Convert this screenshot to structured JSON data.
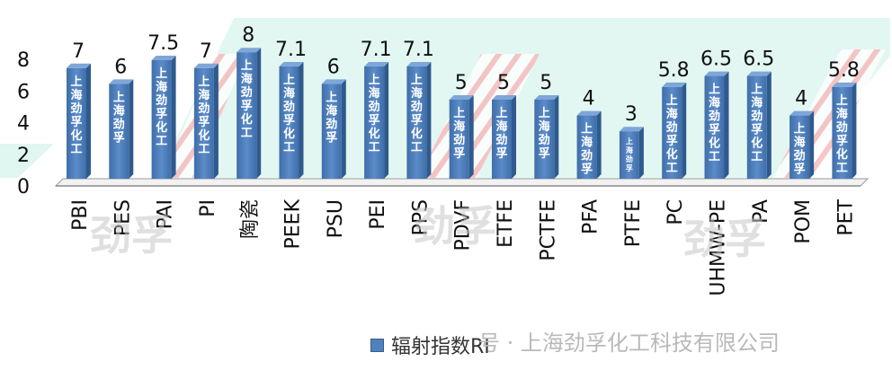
{
  "chart_data": {
    "type": "bar",
    "categories": [
      "PBI",
      "PES",
      "PAI",
      "PI",
      "陶瓷",
      "PEEK",
      "PSU",
      "PEI",
      "PPS",
      "PDVF",
      "ETFE",
      "PCTFE",
      "PFA",
      "PTFE",
      "PC",
      "UHMW-PE",
      "PA",
      "POM",
      "PET"
    ],
    "series": [
      {
        "name": "辐射指数RI",
        "values": [
          7,
          6,
          7.5,
          7,
          8,
          7.1,
          6,
          7.1,
          7.1,
          5,
          5,
          5,
          4,
          3,
          5.8,
          6.5,
          6.5,
          4,
          5.8
        ]
      }
    ],
    "data_labels": [
      "7",
      "6",
      "7.5",
      "7",
      "8",
      "7.1",
      "6",
      "7.1",
      "7.1",
      "5",
      "5",
      "5",
      "4",
      "3",
      "5.8",
      "6.5",
      "6.5",
      "4",
      "5.8"
    ],
    "bar_texts": [
      "上海劲孚化工",
      "上海劲孚",
      "上海劲孚化工",
      "上海劲孚化工",
      "上海劲孚化工",
      "上海劲孚化工",
      "上海劲孚",
      "上海劲孚化工",
      "上海劲孚化工",
      "上海劲孚",
      "上海劲孚",
      "上海劲孚",
      "上海劲孚",
      "上海劲孚",
      "上海劲孚化工",
      "上海劲孚化工",
      "上海劲孚化工",
      "上海劲孚",
      "上海劲孚化工"
    ],
    "y_ticks": [
      "0",
      "2",
      "4",
      "6",
      "8"
    ],
    "ylim": [
      0,
      8
    ],
    "grid": false,
    "legend_position": "bottom",
    "bar_color": "#4f81bd",
    "watermark_chars": [
      "劲",
      "孚"
    ]
  },
  "footer_watermark": "号 · 上海劲孚化工科技有限公司"
}
